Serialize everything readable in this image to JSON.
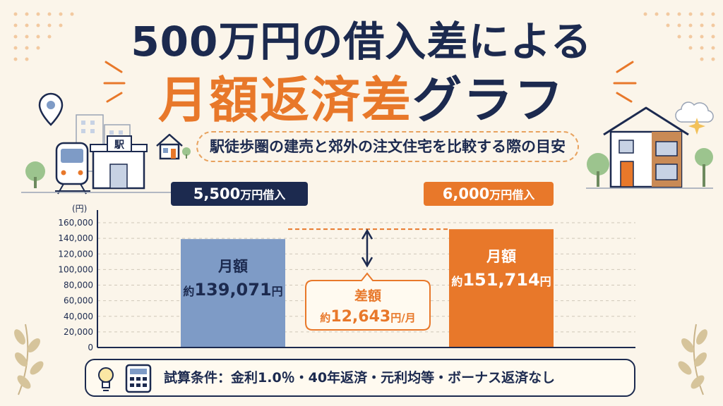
{
  "header": {
    "title_line1": "500万円の借入差による",
    "title_line2_accent": "月額返済差",
    "title_line2_rest": "グラフ",
    "subtitle": "駅徒歩圏の建売と郊外の注文住宅を比較する際の目安"
  },
  "tags": {
    "left_amount": "5,500",
    "left_unit": "万円借入",
    "right_amount": "6,000",
    "right_unit": "万円借入"
  },
  "station_sign": "駅",
  "conditions": "試算条件：金利1.0％・40年返済・元利均等・ボーナス返済なし",
  "colors": {
    "navy": "#1c2a4f",
    "orange": "#e8782a",
    "blue_bar": "#7e9bc6",
    "background": "#fbf5ea"
  },
  "chart_data": {
    "type": "bar",
    "ylabel": "(円)",
    "ylim": [
      0,
      160000
    ],
    "yticks": [
      "0",
      "20,000",
      "40,000",
      "60,000",
      "80,000",
      "100,000",
      "120,000",
      "140,000",
      "160,000"
    ],
    "grid": true,
    "categories": [
      "5,500万円借入",
      "6,000万円借入"
    ],
    "values": [
      139071,
      151714
    ],
    "bar_labels": [
      {
        "line1": "月額",
        "prefix": "約",
        "value": "139,071",
        "unit": "円"
      },
      {
        "line1": "月額",
        "prefix": "約",
        "value": "151,714",
        "unit": "円"
      }
    ],
    "difference": {
      "value": 12643,
      "label_line1": "差額",
      "prefix": "約",
      "value_text": "12,643",
      "unit": "円/月"
    }
  },
  "icons": [
    "location-pin-icon",
    "train-icon",
    "station-icon",
    "small-house-icon",
    "house-icon",
    "tree-icon",
    "cloud-icon",
    "sparkle-icon",
    "lightbulb-icon",
    "calculator-icon",
    "leaf-icon"
  ]
}
